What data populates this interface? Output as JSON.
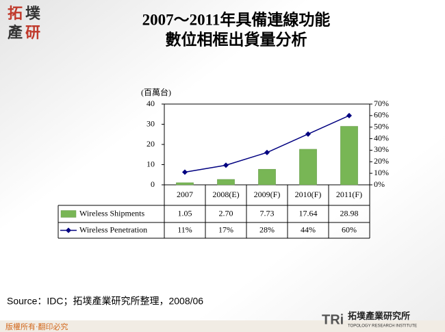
{
  "chart_data": {
    "type": "bar",
    "title": [
      "2007～2011年具備連線功能",
      "數位相框出貨量分析"
    ],
    "y_label": "(百萬台)",
    "categories": [
      "2007",
      "2008(E)",
      "2009(F)",
      "2010(F)",
      "2011(F)"
    ],
    "series": [
      {
        "name": "Wireless Shipments",
        "color": "#78b655",
        "values": [
          1.05,
          2.7,
          7.73,
          17.64,
          28.98
        ],
        "value_labels": [
          "1.05",
          "2.70",
          "7.73",
          "17.64",
          "28.98"
        ]
      },
      {
        "name": "Wireless Penetration",
        "type": "line",
        "axis": "y2",
        "color": "#000080",
        "values": [
          11,
          17,
          28,
          44,
          60
        ],
        "value_labels": [
          "11%",
          "17%",
          "28%",
          "44%",
          "60%"
        ]
      }
    ],
    "ylim": [
      0,
      40
    ],
    "yticks": [
      0,
      10,
      20,
      30,
      40
    ],
    "y2lim": [
      0,
      70
    ],
    "y2ticks": [
      {
        "value": 0,
        "label": "0%"
      },
      {
        "value": 10,
        "label": "10%"
      },
      {
        "value": 20,
        "label": "20%"
      },
      {
        "value": 30,
        "label": "30%"
      },
      {
        "value": 40,
        "label": "40%"
      },
      {
        "value": 50,
        "label": "50%"
      },
      {
        "value": 60,
        "label": "60%"
      },
      {
        "value": 70,
        "label": "70%"
      }
    ],
    "grid": false
  },
  "logo": [
    "拓",
    "墣",
    "產",
    "研"
  ],
  "source": "Source：IDC；拓墣產業研究所整理，2008/06",
  "footer": {
    "copyright": "版權所有‧翻印必究",
    "mark": "TRi",
    "org_name": "拓墣產業研究所",
    "org_english": "TOPOLOGY RESEARCH INSTITUTE"
  }
}
